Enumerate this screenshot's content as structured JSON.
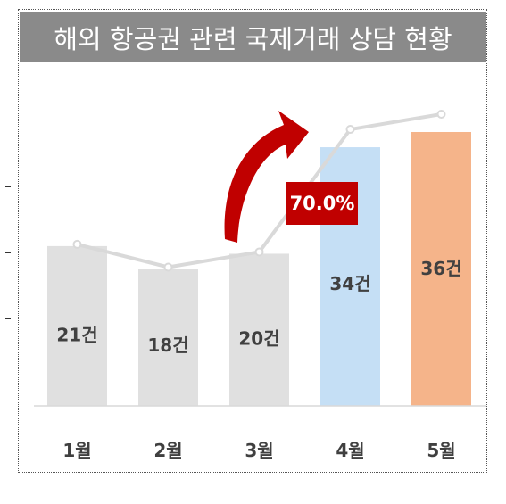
{
  "title": "해외 항공권 관련 국제거래 상담 현황",
  "growth_label": "70.0%",
  "colors": {
    "title_bg": "#8a8a8a",
    "bar_default": "#e0e0e0",
    "bar_highlight_blue": "#c5dff5",
    "bar_highlight_orange": "#f5b48a",
    "line": "#d9d9d9",
    "arrow": "#c00000",
    "badge": "#c00000"
  },
  "chart_data": {
    "type": "bar",
    "title": "해외 항공권 관련 국제거래 상담 현황",
    "categories": [
      "1월",
      "2월",
      "3월",
      "4월",
      "5월"
    ],
    "values": [
      21,
      18,
      20,
      34,
      36
    ],
    "labels": [
      "21건",
      "18건",
      "20건",
      "34건",
      "36건"
    ],
    "overlay_line": true,
    "annotation": "70.0%",
    "grid": false,
    "legend": "none"
  }
}
